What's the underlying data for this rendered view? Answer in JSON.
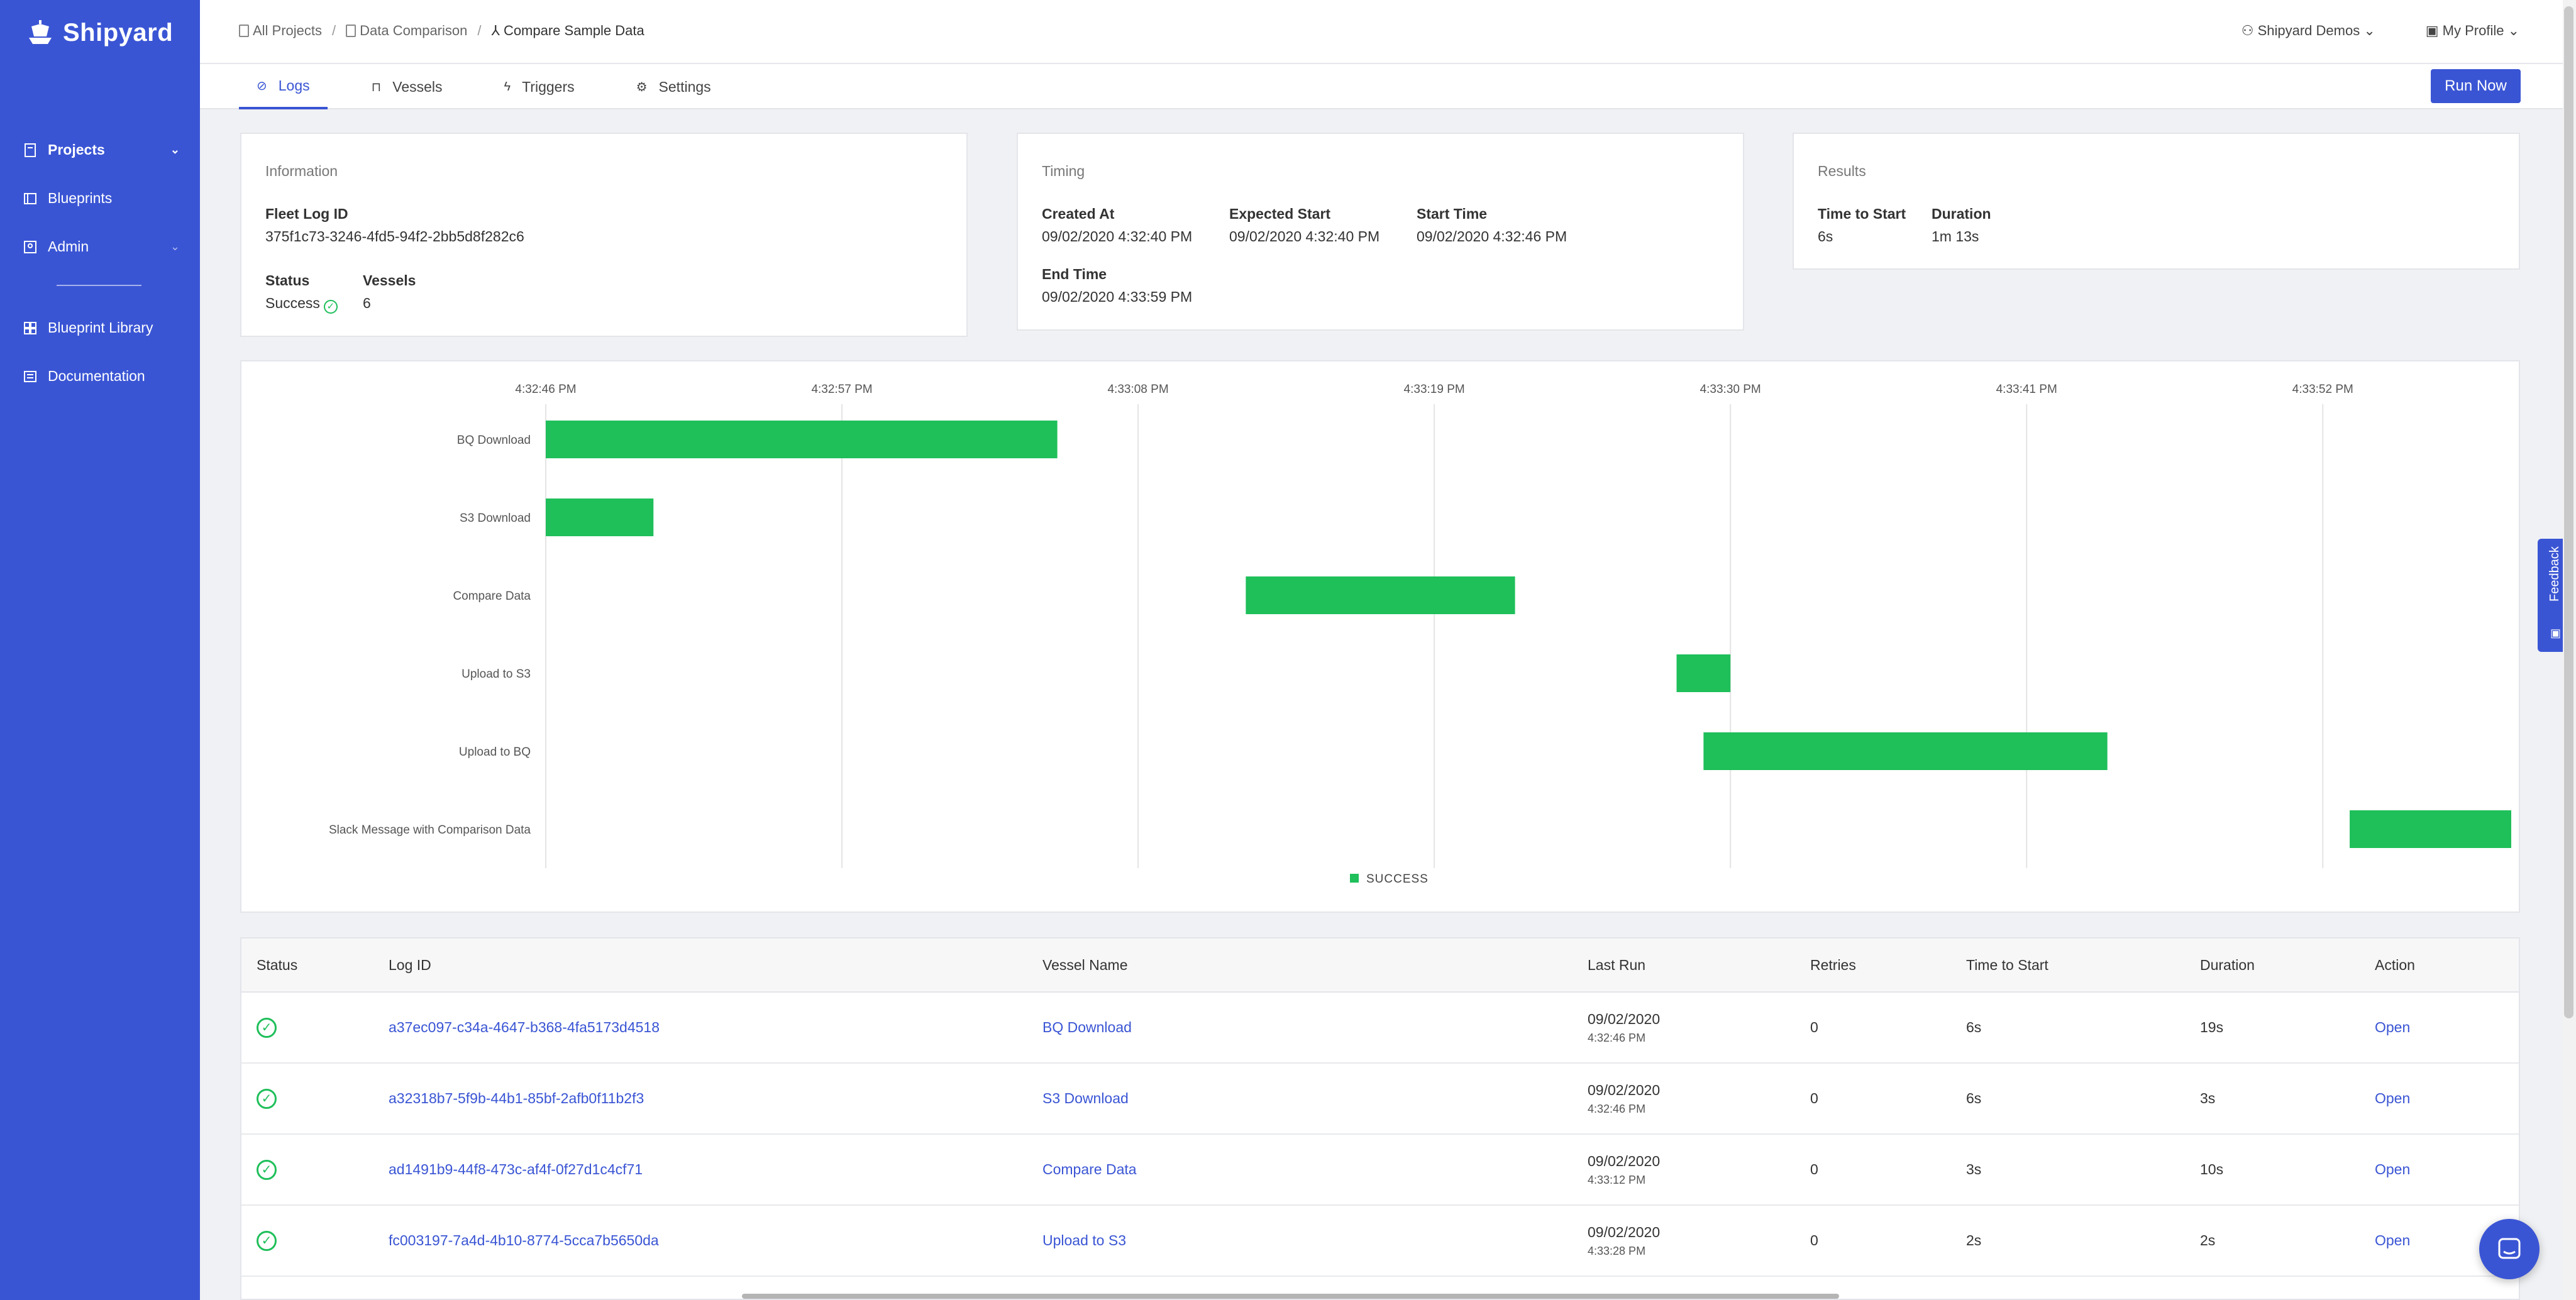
{
  "app": {
    "name": "Shipyard"
  },
  "sidebar": {
    "items": [
      {
        "label": "Projects",
        "icon": "doc-icon",
        "active": true,
        "chevron": "⌄"
      },
      {
        "label": "Blueprints",
        "icon": "blueprint-icon"
      },
      {
        "label": "Admin",
        "icon": "admin-icon",
        "chevron": "⌄"
      }
    ],
    "bottom_items": [
      {
        "label": "Blueprint Library",
        "icon": "library-icon"
      },
      {
        "label": "Documentation",
        "icon": "docs-icon"
      }
    ]
  },
  "breadcrumb": {
    "items": [
      "All Projects",
      "Data Comparison",
      "Compare Sample Data"
    ],
    "separator": "/"
  },
  "topbar": {
    "org": "Shipyard Demos",
    "profile": "My Profile"
  },
  "tabs": [
    {
      "label": "Logs",
      "icon": "⊘",
      "active": true
    },
    {
      "label": "Vessels",
      "icon": "🔒"
    },
    {
      "label": "Triggers",
      "icon": "ϟ"
    },
    {
      "label": "Settings",
      "icon": "⚙"
    }
  ],
  "run_button": "Run Now",
  "information": {
    "title": "Information",
    "fleet_log_id_label": "Fleet Log ID",
    "fleet_log_id": "375f1c73-3246-4fd5-94f2-2bb5d8f282c6",
    "status_label": "Status",
    "status": "Success",
    "vessels_label": "Vessels",
    "vessels": "6"
  },
  "timing": {
    "title": "Timing",
    "created_label": "Created At",
    "created": "09/02/2020 4:32:40 PM",
    "expected_label": "Expected Start",
    "expected": "09/02/2020 4:32:40 PM",
    "start_label": "Start Time",
    "start": "09/02/2020 4:32:46 PM",
    "end_label": "End Time",
    "end": "09/02/2020 4:33:59 PM"
  },
  "results": {
    "title": "Results",
    "tts_label": "Time to Start",
    "tts": "6s",
    "duration_label": "Duration",
    "duration": "1m 13s"
  },
  "chart_data": {
    "type": "gantt",
    "x_ticks": [
      "4:32:46 PM",
      "4:32:57 PM",
      "4:33:08 PM",
      "4:33:19 PM",
      "4:33:30 PM",
      "4:33:41 PM",
      "4:33:52 PM"
    ],
    "tick_seconds": [
      0,
      11,
      22,
      33,
      44,
      55,
      66
    ],
    "x_range_seconds": [
      0,
      73
    ],
    "tasks": [
      {
        "name": "BQ Download",
        "start": 0,
        "end": 19
      },
      {
        "name": "S3 Download",
        "start": 0,
        "end": 4
      },
      {
        "name": "Compare Data",
        "start": 26,
        "end": 36
      },
      {
        "name": "Upload to S3",
        "start": 42,
        "end": 44
      },
      {
        "name": "Upload to BQ",
        "start": 43,
        "end": 58
      },
      {
        "name": "Slack Message with Comparison Data",
        "start": 67,
        "end": 73
      }
    ],
    "legend": [
      {
        "name": "SUCCESS",
        "color": "#1fbf5a"
      }
    ],
    "bar_color": "#1fbf5a",
    "grid": true
  },
  "table": {
    "headers": [
      "Status",
      "Log ID",
      "Vessel Name",
      "Last Run",
      "Retries",
      "Time to Start",
      "Duration",
      "Action"
    ],
    "rows": [
      {
        "log_id": "a37ec097-c34a-4647-b368-4fa5173d4518",
        "vessel": "BQ Download",
        "date": "09/02/2020",
        "time": "4:32:46 PM",
        "retries": "0",
        "tts": "6s",
        "duration": "19s",
        "action": "Open"
      },
      {
        "log_id": "a32318b7-5f9b-44b1-85bf-2afb0f11b2f3",
        "vessel": "S3 Download",
        "date": "09/02/2020",
        "time": "4:32:46 PM",
        "retries": "0",
        "tts": "6s",
        "duration": "3s",
        "action": "Open"
      },
      {
        "log_id": "ad1491b9-44f8-473c-af4f-0f27d1c4cf71",
        "vessel": "Compare Data",
        "date": "09/02/2020",
        "time": "4:33:12 PM",
        "retries": "0",
        "tts": "3s",
        "duration": "10s",
        "action": "Open"
      },
      {
        "log_id": "fc003197-7a4d-4b10-8774-5cca7b5650da",
        "vessel": "Upload to S3",
        "date": "09/02/2020",
        "time": "4:33:28 PM",
        "retries": "0",
        "tts": "2s",
        "duration": "2s",
        "action": "Open"
      }
    ]
  },
  "feedback": "Feedback",
  "colors": {
    "brand": "#3a55d4",
    "success": "#1fbf5a"
  }
}
